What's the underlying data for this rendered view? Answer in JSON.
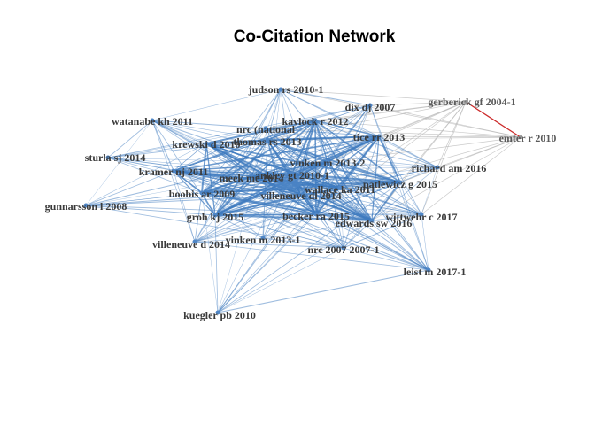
{
  "title": "Co-Citation Network",
  "colors": {
    "main_edge": "#3f7bbf",
    "grey_edge": "#b4b4b4",
    "red_edge": "#cc2a2a",
    "node_fill": "#4f86c6",
    "label": "#3a3a3a"
  },
  "nodes": [
    {
      "id": "judson",
      "label": "judson rs 2010-1",
      "cluster": "main"
    },
    {
      "id": "dix",
      "label": "dix dj 2007",
      "cluster": "main"
    },
    {
      "id": "gerberick",
      "label": "gerberick gf 2004-1",
      "cluster": "grey"
    },
    {
      "id": "emter",
      "label": "emter r 2010",
      "cluster": "grey"
    },
    {
      "id": "watanabe",
      "label": "watanabe kh 2011",
      "cluster": "main"
    },
    {
      "id": "kavlock",
      "label": "kavlock r 2012",
      "cluster": "main"
    },
    {
      "id": "nrcnat",
      "label": "nrc (national",
      "cluster": "main"
    },
    {
      "id": "thomas",
      "label": "thomas rs 2013",
      "cluster": "main"
    },
    {
      "id": "krewski",
      "label": "krewski d 2010",
      "cluster": "main"
    },
    {
      "id": "tice",
      "label": "tice rr 2013",
      "cluster": "main"
    },
    {
      "id": "sturla",
      "label": "sturla sj 2014",
      "cluster": "main"
    },
    {
      "id": "vinken2",
      "label": "vinken m 2013-2",
      "cluster": "main"
    },
    {
      "id": "richard",
      "label": "richard am 2016",
      "cluster": "main"
    },
    {
      "id": "kramer",
      "label": "kramer nj 2011",
      "cluster": "main"
    },
    {
      "id": "meek",
      "label": "meek me 2014",
      "cluster": "main"
    },
    {
      "id": "ankley",
      "label": "ankley gt 2010-1",
      "cluster": "main"
    },
    {
      "id": "patlewicz",
      "label": "patlewicz g 2015",
      "cluster": "main"
    },
    {
      "id": "wallace",
      "label": "wallace ka 2011",
      "cluster": "main"
    },
    {
      "id": "boobis",
      "label": "boobis ar 2009",
      "cluster": "main"
    },
    {
      "id": "villeneuve1",
      "label": "villeneuve dl 2014",
      "cluster": "main"
    },
    {
      "id": "gunnarsson",
      "label": "gunnarsson l 2008",
      "cluster": "main"
    },
    {
      "id": "groh",
      "label": "groh kj 2015",
      "cluster": "main"
    },
    {
      "id": "becker",
      "label": "becker ra 2015",
      "cluster": "main"
    },
    {
      "id": "edwards",
      "label": "edwards sw 2016",
      "cluster": "main"
    },
    {
      "id": "wittwehr",
      "label": "wittwehr c 2017",
      "cluster": "main"
    },
    {
      "id": "villeneuve2",
      "label": "villeneuve d 2014",
      "cluster": "main"
    },
    {
      "id": "vinken1",
      "label": "vinken m 2013-1",
      "cluster": "main"
    },
    {
      "id": "nrc2007",
      "label": "nrc 2007 2007-1",
      "cluster": "main"
    },
    {
      "id": "leist",
      "label": "leist m 2017-1",
      "cluster": "main"
    },
    {
      "id": "kuegler",
      "label": "kuegler pb 2010",
      "cluster": "main"
    }
  ],
  "edges": {
    "red": [
      [
        "gerberick",
        "emter"
      ]
    ]
  }
}
